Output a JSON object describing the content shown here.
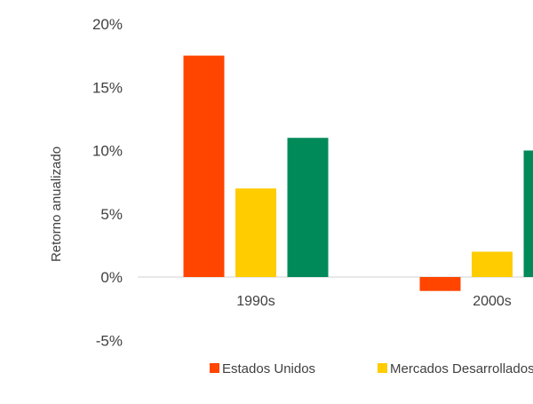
{
  "chart_data": {
    "type": "bar",
    "title": "",
    "xlabel": "",
    "ylabel": "Retorno anualizado",
    "ylim": [
      -5,
      20
    ],
    "yticks": [
      "20%",
      "15%",
      "10%",
      "5%",
      "0%",
      "-5%"
    ],
    "ytick_values": [
      20,
      15,
      10,
      5,
      0,
      -5
    ],
    "categories": [
      "1990s",
      "2000s"
    ],
    "grid": false,
    "legend_position": "bottom",
    "series": [
      {
        "name": "Estados Unidos",
        "color": "#FF4500",
        "values": [
          17.5,
          -1.1
        ]
      },
      {
        "name": "Mercados Desarrollados",
        "color": "#FFCC00",
        "values": [
          7.0,
          2.0
        ]
      },
      {
        "color": "#008A5A",
        "values": [
          11.0,
          10.0
        ]
      }
    ]
  }
}
